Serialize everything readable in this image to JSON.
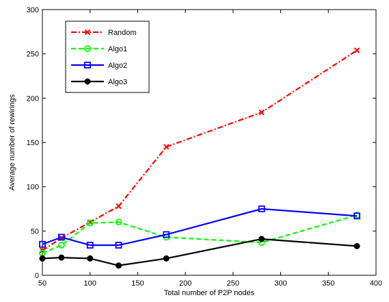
{
  "chart_data": {
    "type": "line",
    "xlabel": "Total number of P2P nodes",
    "ylabel": "Average number of rewirings",
    "xlim": [
      50,
      400
    ],
    "ylim": [
      0,
      300
    ],
    "xticks": [
      50,
      100,
      150,
      200,
      250,
      300,
      350,
      400
    ],
    "yticks": [
      0,
      50,
      100,
      150,
      200,
      250,
      300
    ],
    "grid": false,
    "legend_position": "top-left",
    "series": [
      {
        "name": "Random",
        "color": "#ff0000",
        "line_style": "dash-dot",
        "marker": "x",
        "x": [
          50,
          70,
          100,
          130,
          180,
          280,
          380
        ],
        "y": [
          28,
          42,
          60,
          78,
          145,
          184,
          254
        ]
      },
      {
        "name": "Algo1",
        "color": "#00ff00",
        "line_style": "dashed",
        "marker": "circle",
        "x": [
          50,
          70,
          100,
          130,
          180,
          280,
          380
        ],
        "y": [
          25,
          34,
          59,
          60,
          43,
          37,
          68
        ]
      },
      {
        "name": "Algo2",
        "color": "#0000ff",
        "line_style": "solid",
        "marker": "square",
        "x": [
          50,
          70,
          100,
          130,
          180,
          280,
          380
        ],
        "y": [
          35,
          43,
          34,
          34,
          46,
          75,
          67
        ]
      },
      {
        "name": "Algo3",
        "color": "#000000",
        "line_style": "solid",
        "marker": "dot",
        "x": [
          50,
          70,
          100,
          130,
          180,
          280,
          380
        ],
        "y": [
          19,
          20,
          19,
          11,
          19,
          41,
          33
        ]
      }
    ]
  }
}
